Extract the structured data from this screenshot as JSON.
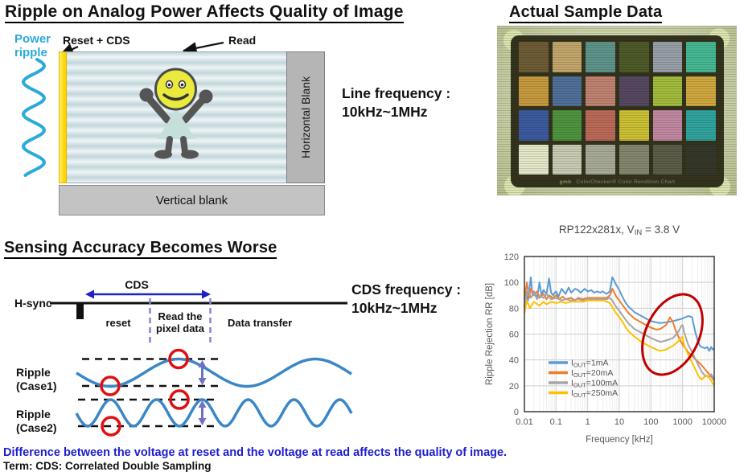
{
  "main_title": "Ripple on Analog Power Affects Quality of Image",
  "sensor": {
    "power_ripple": "Power\nripple",
    "reset_cds_label": "Reset + CDS",
    "read_label": "Read",
    "horizontal_blank": "Horizontal Blank",
    "vertical_blank": "Vertical blank",
    "line_frequency": "Line frequency :\n10kHz~1MHz",
    "ripple_color": "#2aa9dc",
    "reset_bar_color": "#ffd400"
  },
  "sample": {
    "title": "Actual Sample Data",
    "brand": "gmb",
    "caption": "ColorChecker® Color Rendition Chart",
    "patch_colors": [
      [
        "#6e5c36",
        "#c2a66c",
        "#5f948c",
        "#4e5a28",
        "#98a0aa",
        "#46b894"
      ],
      [
        "#c89a40",
        "#50709a",
        "#c08272",
        "#564862",
        "#a2bc3c",
        "#d0a83e"
      ],
      [
        "#3c5aa0",
        "#4e9440",
        "#bc6a58",
        "#ccc034",
        "#c288a2",
        "#30a49e"
      ],
      [
        "#e6e8ca",
        "#c9cbb5",
        "#a9ab99",
        "#84866f",
        "#5b5d49",
        "#35372b"
      ]
    ]
  },
  "sensing": {
    "title": "Sensing Accuracy Becomes Worse",
    "hsync": "H-sync",
    "cds": "CDS",
    "reset": "reset",
    "read_pixel_line1": "Read the",
    "read_pixel_line2": "pixel data",
    "data_transfer": "Data transfer",
    "cds_frequency": "CDS frequency :\n10kHz~1MHz",
    "ripple_case1_line1": "Ripple",
    "ripple_case1_line2": "(Case1)",
    "ripple_case2_line1": "Ripple",
    "ripple_case2_line2": "(Case2)",
    "wave_color": "#3a86c6",
    "marker_color": "#e01010",
    "arrow_color": "#6f6fc4",
    "cds_arrow_color": "#2020c8"
  },
  "footer": {
    "note": "Difference between the voltage at reset and the voltage at read affects the quality of image.",
    "term": "Term: CDS: Correlated Double Sampling"
  },
  "chart_data": {
    "type": "line",
    "title": {
      "prefix": "RP122x281x, V",
      "sub": "IN",
      "suffix": " = 3.8 V"
    },
    "xlabel": "Frequency [kHz]",
    "ylabel": "Ripple Rejection RR [dB]",
    "xscale": "log",
    "xlim": [
      0.01,
      10000
    ],
    "ylim": [
      0,
      120
    ],
    "xticks": [
      0.01,
      0.1,
      1,
      10,
      100,
      1000,
      10000
    ],
    "yticks": [
      0,
      20,
      40,
      60,
      80,
      100,
      120
    ],
    "grid": true,
    "legend_position": "lower-left",
    "annotation": "red ellipse highlighting ripple-rejection drop between ~100 kHz and ~3 MHz",
    "annotation_color": "#C00000",
    "series": [
      {
        "label_prefix": "I",
        "label_sub": "OUT",
        "label_rest": "=1mA",
        "color": "#5B9BD5",
        "points": [
          [
            0.01,
            80
          ],
          [
            0.011,
            93
          ],
          [
            0.013,
            86
          ],
          [
            0.016,
            104
          ],
          [
            0.018,
            90
          ],
          [
            0.02,
            93
          ],
          [
            0.025,
            88
          ],
          [
            0.03,
            100
          ],
          [
            0.035,
            90
          ],
          [
            0.04,
            94
          ],
          [
            0.05,
            91
          ],
          [
            0.06,
            103
          ],
          [
            0.07,
            92
          ],
          [
            0.08,
            90
          ],
          [
            0.1,
            93
          ],
          [
            0.12,
            89
          ],
          [
            0.15,
            95
          ],
          [
            0.2,
            91
          ],
          [
            0.25,
            96
          ],
          [
            0.3,
            92
          ],
          [
            0.4,
            95
          ],
          [
            0.5,
            94
          ],
          [
            0.6,
            92
          ],
          [
            0.8,
            95
          ],
          [
            1,
            93
          ],
          [
            1.3,
            94
          ],
          [
            1.6,
            92
          ],
          [
            2,
            93
          ],
          [
            2.5,
            92
          ],
          [
            3,
            93
          ],
          [
            4,
            91
          ],
          [
            5,
            93
          ],
          [
            6,
            104
          ],
          [
            7,
            101
          ],
          [
            8,
            98
          ],
          [
            10,
            94
          ],
          [
            13,
            88
          ],
          [
            16,
            84
          ],
          [
            20,
            81
          ],
          [
            30,
            77
          ],
          [
            50,
            74
          ],
          [
            70,
            72
          ],
          [
            100,
            70
          ],
          [
            150,
            69
          ],
          [
            200,
            68.5
          ],
          [
            300,
            69
          ],
          [
            500,
            70
          ],
          [
            700,
            71
          ],
          [
            1000,
            72
          ],
          [
            1500,
            74
          ],
          [
            2000,
            73
          ],
          [
            2500,
            62
          ],
          [
            3000,
            55
          ],
          [
            3500,
            51
          ],
          [
            4000,
            50
          ],
          [
            5000,
            49
          ],
          [
            6000,
            50
          ],
          [
            7000,
            47
          ],
          [
            8000,
            50
          ],
          [
            9000,
            48
          ],
          [
            10000,
            49
          ]
        ]
      },
      {
        "label_prefix": "I",
        "label_sub": "OUT",
        "label_rest": "=20mA",
        "color": "#ED7D31",
        "points": [
          [
            0.01,
            87
          ],
          [
            0.012,
            100
          ],
          [
            0.014,
            88
          ],
          [
            0.016,
            95
          ],
          [
            0.02,
            90
          ],
          [
            0.025,
            93
          ],
          [
            0.03,
            88
          ],
          [
            0.04,
            91
          ],
          [
            0.05,
            87
          ],
          [
            0.06,
            90
          ],
          [
            0.08,
            88
          ],
          [
            0.1,
            90
          ],
          [
            0.13,
            87
          ],
          [
            0.16,
            89
          ],
          [
            0.2,
            87
          ],
          [
            0.3,
            88
          ],
          [
            0.4,
            86
          ],
          [
            0.5,
            88
          ],
          [
            0.7,
            87
          ],
          [
            1,
            88
          ],
          [
            1.5,
            88
          ],
          [
            2,
            88
          ],
          [
            3,
            88
          ],
          [
            4,
            88
          ],
          [
            5,
            90
          ],
          [
            6,
            95
          ],
          [
            7,
            92
          ],
          [
            8,
            89
          ],
          [
            10,
            86
          ],
          [
            13,
            82
          ],
          [
            16,
            79
          ],
          [
            20,
            76
          ],
          [
            30,
            72
          ],
          [
            50,
            69
          ],
          [
            70,
            67
          ],
          [
            100,
            65
          ],
          [
            150,
            63.5
          ],
          [
            200,
            64
          ],
          [
            300,
            67
          ],
          [
            400,
            73
          ],
          [
            500,
            69
          ],
          [
            600,
            63
          ],
          [
            800,
            56
          ],
          [
            1000,
            52
          ],
          [
            1500,
            46
          ],
          [
            2000,
            43
          ],
          [
            3000,
            39
          ],
          [
            4000,
            36
          ],
          [
            5000,
            33
          ],
          [
            7000,
            29
          ],
          [
            10000,
            24
          ]
        ]
      },
      {
        "label_prefix": "I",
        "label_sub": "OUT",
        "label_rest": "=100mA",
        "color": "#A5A5A5",
        "points": [
          [
            0.01,
            82
          ],
          [
            0.013,
            95
          ],
          [
            0.016,
            88
          ],
          [
            0.02,
            92
          ],
          [
            0.025,
            87
          ],
          [
            0.03,
            90
          ],
          [
            0.04,
            88
          ],
          [
            0.05,
            91
          ],
          [
            0.07,
            87
          ],
          [
            0.1,
            88
          ],
          [
            0.15,
            86
          ],
          [
            0.2,
            87
          ],
          [
            0.3,
            86
          ],
          [
            0.5,
            87
          ],
          [
            0.7,
            86
          ],
          [
            1,
            87
          ],
          [
            1.5,
            87
          ],
          [
            2,
            87
          ],
          [
            3,
            87
          ],
          [
            4,
            87
          ],
          [
            5,
            88
          ],
          [
            6,
            86
          ],
          [
            7,
            83
          ],
          [
            8,
            81
          ],
          [
            10,
            78
          ],
          [
            13,
            74
          ],
          [
            16,
            71
          ],
          [
            20,
            68
          ],
          [
            30,
            64
          ],
          [
            50,
            61
          ],
          [
            70,
            59
          ],
          [
            100,
            57
          ],
          [
            150,
            55
          ],
          [
            200,
            54
          ],
          [
            300,
            55
          ],
          [
            500,
            57
          ],
          [
            700,
            61
          ],
          [
            900,
            66
          ],
          [
            1000,
            67
          ],
          [
            1100,
            62
          ],
          [
            1500,
            52
          ],
          [
            2000,
            46
          ],
          [
            3000,
            37
          ],
          [
            4000,
            31
          ],
          [
            5000,
            28
          ],
          [
            7000,
            27
          ],
          [
            8000,
            29
          ],
          [
            10000,
            25
          ]
        ]
      },
      {
        "label_prefix": "I",
        "label_sub": "OUT",
        "label_rest": "=250mA",
        "color": "#FFC000",
        "points": [
          [
            0.01,
            76
          ],
          [
            0.012,
            86
          ],
          [
            0.015,
            80
          ],
          [
            0.02,
            85
          ],
          [
            0.03,
            82
          ],
          [
            0.04,
            85
          ],
          [
            0.05,
            83
          ],
          [
            0.07,
            85
          ],
          [
            0.1,
            84
          ],
          [
            0.15,
            85
          ],
          [
            0.2,
            84
          ],
          [
            0.3,
            85
          ],
          [
            0.5,
            85
          ],
          [
            0.7,
            85
          ],
          [
            1,
            86
          ],
          [
            1.5,
            86
          ],
          [
            2,
            86
          ],
          [
            3,
            86
          ],
          [
            4,
            85
          ],
          [
            5,
            84
          ],
          [
            6,
            81
          ],
          [
            7,
            78
          ],
          [
            8,
            76
          ],
          [
            10,
            73
          ],
          [
            13,
            69
          ],
          [
            16,
            65
          ],
          [
            20,
            62
          ],
          [
            30,
            58
          ],
          [
            50,
            54
          ],
          [
            70,
            52
          ],
          [
            100,
            50
          ],
          [
            150,
            48
          ],
          [
            200,
            47
          ],
          [
            300,
            48
          ],
          [
            500,
            51
          ],
          [
            700,
            54
          ],
          [
            900,
            57
          ],
          [
            1000,
            58
          ],
          [
            1100,
            52
          ],
          [
            1500,
            44
          ],
          [
            2000,
            38
          ],
          [
            3000,
            29
          ],
          [
            3500,
            26
          ],
          [
            4000,
            25
          ],
          [
            5000,
            27
          ],
          [
            6000,
            28
          ],
          [
            7000,
            26
          ],
          [
            8000,
            24
          ],
          [
            10000,
            20
          ]
        ]
      }
    ]
  }
}
